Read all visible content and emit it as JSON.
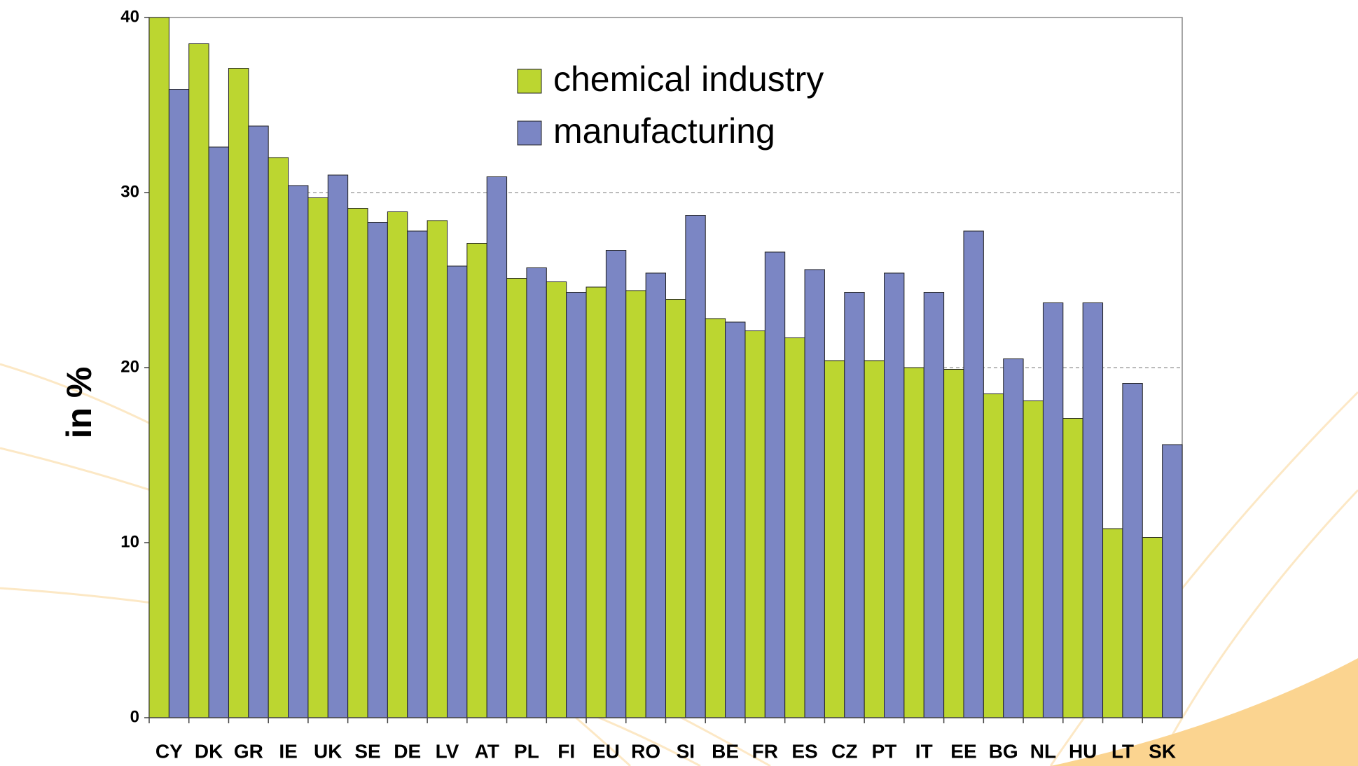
{
  "chart_data": {
    "type": "bar",
    "y_label": "in %",
    "categories": [
      "CY",
      "DK",
      "GR",
      "IE",
      "UK",
      "SE",
      "DE",
      "LV",
      "AT",
      "PL",
      "FI",
      "EU",
      "RO",
      "SI",
      "BE",
      "FR",
      "ES",
      "CZ",
      "PT",
      "IT",
      "EE",
      "BG",
      "NL",
      "HU",
      "LT",
      "SK"
    ],
    "series": [
      {
        "name": "chemical industry",
        "color": "#bcd630",
        "values": [
          40,
          38.5,
          37.1,
          32,
          29.7,
          29.1,
          28.9,
          28.4,
          27.1,
          25.1,
          24.9,
          24.6,
          24.4,
          23.9,
          22.8,
          22.1,
          21.7,
          20.4,
          20.4,
          20,
          19.9,
          18.5,
          18.1,
          17.1,
          10.8,
          10.3
        ]
      },
      {
        "name": "manufacturing",
        "color": "#7b86c4",
        "values": [
          35.9,
          32.6,
          33.8,
          30.4,
          31,
          28.3,
          27.8,
          25.8,
          30.9,
          25.7,
          24.3,
          26.7,
          25.4,
          28.7,
          22.6,
          26.6,
          25.6,
          24.3,
          25.4,
          24.3,
          27.8,
          20.5,
          23.7,
          23.7,
          19.1,
          15.6
        ]
      }
    ],
    "ylim": [
      0,
      40
    ],
    "yticks": [
      0,
      10,
      20,
      30,
      40
    ],
    "grid": true
  }
}
